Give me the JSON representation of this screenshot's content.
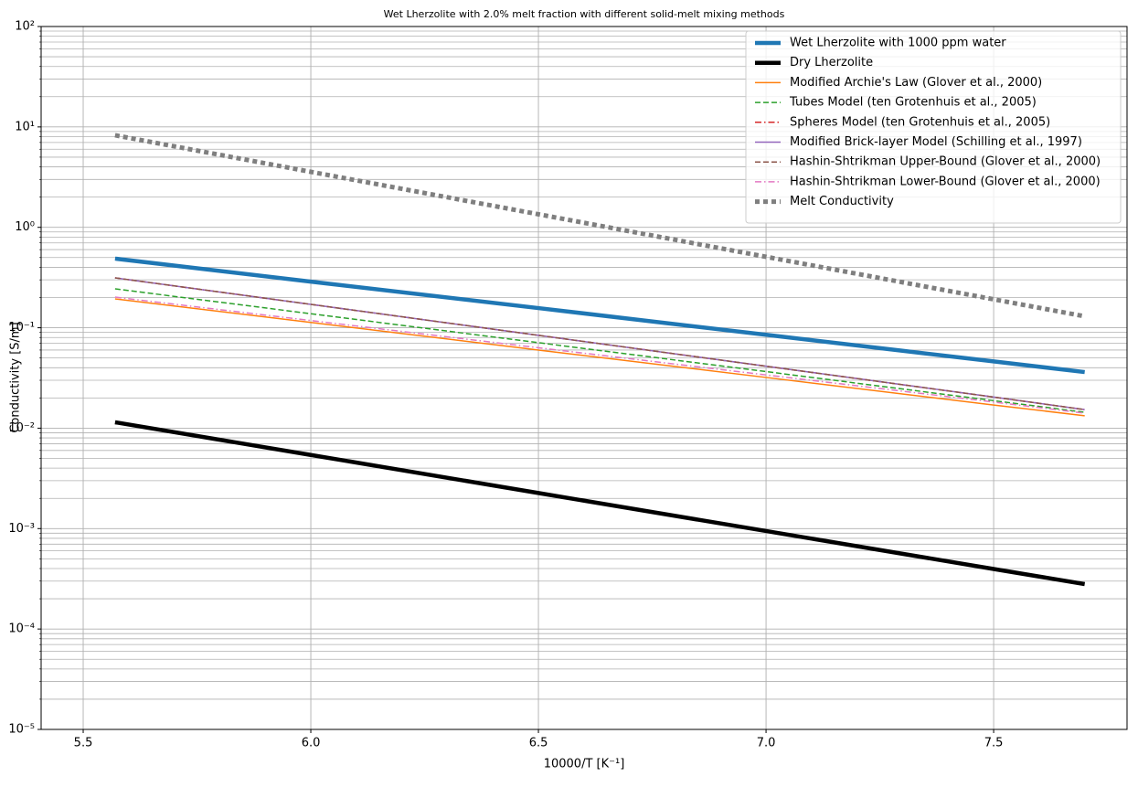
{
  "chart_data": {
    "type": "line",
    "title": "Wet Lherzolite with 2.0% melt fraction with different solid-melt mixing methods",
    "x_label": "10000/T [K⁻¹]",
    "y_label": "Conductivity [S/m]",
    "x": [
      5.57,
      6.0,
      6.5,
      7.0,
      7.5,
      7.7
    ],
    "series": [
      {
        "name": "Wet Lherzolite with 1000 ppm water",
        "color": "#1f77b4",
        "width": 4.5,
        "dash": "solid",
        "values": [
          0.488,
          0.288,
          0.157,
          0.0851,
          0.0462,
          0.0362
        ]
      },
      {
        "name": "Dry Lherzolite",
        "color": "#000000",
        "width": 4.5,
        "dash": "solid",
        "values": [
          0.01145,
          0.00541,
          0.00226,
          0.000946,
          0.000396,
          0.00028
        ]
      },
      {
        "name": "Modified Archie's Law (Glover et al., 2000)",
        "color": "#ff7f0e",
        "width": 1.5,
        "dash": "solid",
        "values": [
          0.194,
          0.113,
          0.06,
          0.032,
          0.017,
          0.0133
        ]
      },
      {
        "name": "Tubes Model (ten Grotenhuis et al., 2005)",
        "color": "#2ca02c",
        "width": 1.5,
        "dash": "dashed",
        "values": [
          0.244,
          0.138,
          0.071,
          0.0366,
          0.0188,
          0.0144
        ]
      },
      {
        "name": "Spheres Model (ten Grotenhuis et al., 2005)",
        "color": "#d62728",
        "width": 1.5,
        "dash": "dashdot",
        "values": [
          0.314,
          0.171,
          0.0841,
          0.0414,
          0.0204,
          0.0153
        ]
      },
      {
        "name": "Modified Brick-layer Model (Schilling et al., 1997)",
        "color": "#9467bd",
        "width": 1.5,
        "dash": "solid",
        "values": [
          0.314,
          0.171,
          0.0841,
          0.0414,
          0.0204,
          0.0153
        ]
      },
      {
        "name": "Hashin-Shtrikman Upper-Bound (Glover et al., 2000)",
        "color": "#8c564b",
        "width": 1.5,
        "dash": "dashed",
        "values": [
          0.314,
          0.171,
          0.0841,
          0.0414,
          0.0204,
          0.0153
        ]
      },
      {
        "name": "Hashin-Shtrikman Lower-Bound (Glover et al., 2000)",
        "color": "#e377c2",
        "width": 1.5,
        "dash": "dashdot",
        "values": [
          0.202,
          0.118,
          0.0632,
          0.0339,
          0.0182,
          0.0141
        ]
      },
      {
        "name": "Melt Conductivity",
        "color": "#7f7f7f",
        "width": 5,
        "dash": "dotted",
        "values": [
          8.26,
          3.57,
          1.35,
          0.509,
          0.192,
          0.13
        ]
      }
    ],
    "xlim": [
      5.4076,
      7.793
    ],
    "ylim": [
      1e-05,
      100
    ],
    "y_scale": "log",
    "xticks": [
      {
        "value": 5.5,
        "label": "5.5"
      },
      {
        "value": 6.0,
        "label": "6.0"
      },
      {
        "value": 6.5,
        "label": "6.5"
      },
      {
        "value": 7.0,
        "label": "7.0"
      },
      {
        "value": 7.5,
        "label": "7.5"
      }
    ],
    "yticks": [
      {
        "value": 1e-05,
        "label": "10⁻⁵"
      },
      {
        "value": 0.0001,
        "label": "10⁻⁴"
      },
      {
        "value": 0.001,
        "label": "10⁻³"
      },
      {
        "value": 0.01,
        "label": "10⁻²"
      },
      {
        "value": 0.1,
        "label": "10⁻¹"
      },
      {
        "value": 1,
        "label": "10⁰"
      },
      {
        "value": 10,
        "label": "10¹"
      },
      {
        "value": 100,
        "label": "10²"
      }
    ],
    "grid": true,
    "minor_grid": true,
    "legend": "upper right"
  }
}
